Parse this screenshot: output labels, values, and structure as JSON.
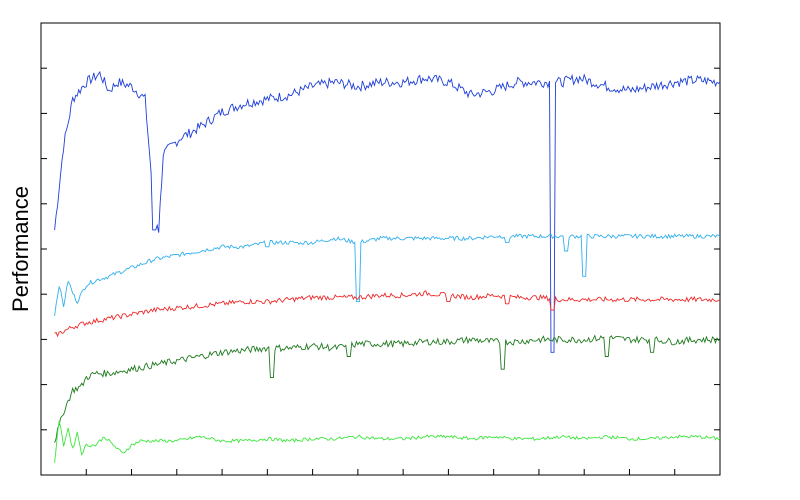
{
  "chart_data": {
    "type": "line",
    "title": "",
    "xlabel": "",
    "ylabel": "Performance",
    "xlim": [
      0,
      150
    ],
    "ylim": [
      0,
      1
    ],
    "grid": false,
    "x_tick_count": 15,
    "y_tick_count": 9,
    "colors": {
      "axis": "#000000",
      "blue": "#1f3fd9",
      "lightblue": "#33b0ee",
      "red": "#ee2a2a",
      "darkgreen": "#1f7a1f",
      "lightgreen": "#3ee63e"
    },
    "series": [
      {
        "color": "#1f3fd9",
        "noise": 0.012,
        "x": [
          3,
          5,
          7,
          10,
          13,
          15,
          17,
          20,
          23,
          25,
          26,
          27,
          29,
          31,
          33,
          36,
          40,
          45,
          50,
          55,
          60,
          65,
          70,
          75,
          80,
          85,
          90,
          95,
          100,
          105,
          110,
          115,
          119,
          122,
          125,
          130,
          135,
          140,
          145,
          150
        ],
        "y": [
          0.55,
          0.75,
          0.86,
          0.9,
          0.92,
          0.88,
          0.9,
          0.89,
          0.86,
          0.6,
          0.55,
          0.73,
          0.75,
          0.77,
          0.78,
          0.8,
          0.83,
          0.85,
          0.86,
          0.87,
          0.89,
          0.9,
          0.89,
          0.9,
          0.9,
          0.91,
          0.9,
          0.87,
          0.88,
          0.9,
          0.9,
          0.9,
          0.91,
          0.9,
          0.89,
          0.88,
          0.89,
          0.9,
          0.905,
          0.9
        ],
        "dips": [
          {
            "x": 25,
            "y": 0.55
          },
          {
            "x": 113,
            "y": 0.26
          }
        ]
      },
      {
        "color": "#33b0ee",
        "noise": 0.005,
        "x": [
          3,
          4,
          5,
          6,
          7,
          8,
          10,
          12,
          15,
          20,
          25,
          30,
          35,
          40,
          45,
          50,
          55,
          60,
          65,
          70,
          75,
          80,
          85,
          90,
          95,
          100,
          105,
          110,
          115,
          120,
          125,
          130,
          135,
          140,
          145,
          150
        ],
        "y": [
          0.35,
          0.42,
          0.37,
          0.43,
          0.4,
          0.38,
          0.42,
          0.43,
          0.44,
          0.46,
          0.48,
          0.49,
          0.5,
          0.51,
          0.51,
          0.52,
          0.52,
          0.52,
          0.53,
          0.52,
          0.53,
          0.53,
          0.53,
          0.53,
          0.53,
          0.535,
          0.535,
          0.535,
          0.535,
          0.535,
          0.535,
          0.535,
          0.535,
          0.535,
          0.535,
          0.535
        ],
        "dips": [
          {
            "x": 70,
            "y": 0.38
          },
          {
            "x": 120,
            "y": 0.44
          },
          {
            "x": 116,
            "y": 0.5
          },
          {
            "x": 57,
            "y": 0.52
          },
          {
            "x": 50,
            "y": 0.51
          },
          {
            "x": 103,
            "y": 0.52
          }
        ]
      },
      {
        "color": "#ee2a2a",
        "noise": 0.006,
        "x": [
          3,
          5,
          7,
          10,
          15,
          20,
          25,
          30,
          35,
          40,
          45,
          50,
          55,
          60,
          65,
          70,
          75,
          80,
          85,
          90,
          95,
          100,
          105,
          110,
          115,
          120,
          125,
          130,
          135,
          140,
          145,
          150
        ],
        "y": [
          0.3,
          0.31,
          0.32,
          0.33,
          0.34,
          0.35,
          0.36,
          0.365,
          0.37,
          0.375,
          0.38,
          0.38,
          0.385,
          0.39,
          0.39,
          0.39,
          0.395,
          0.395,
          0.4,
          0.395,
          0.39,
          0.395,
          0.39,
          0.39,
          0.385,
          0.385,
          0.385,
          0.385,
          0.385,
          0.385,
          0.385,
          0.385
        ],
        "dips": [
          {
            "x": 103,
            "y": 0.375
          },
          {
            "x": 90,
            "y": 0.38
          },
          {
            "x": 113,
            "y": 0.36
          }
        ]
      },
      {
        "color": "#1f7a1f",
        "noise": 0.008,
        "x": [
          3,
          5,
          7,
          9,
          10,
          12,
          15,
          20,
          25,
          30,
          35,
          40,
          45,
          50,
          55,
          60,
          65,
          70,
          75,
          80,
          85,
          90,
          95,
          100,
          105,
          110,
          115,
          120,
          125,
          130,
          135,
          140,
          145,
          150
        ],
        "y": [
          0.05,
          0.12,
          0.17,
          0.18,
          0.2,
          0.21,
          0.21,
          0.22,
          0.23,
          0.24,
          0.25,
          0.26,
          0.265,
          0.27,
          0.27,
          0.275,
          0.27,
          0.28,
          0.28,
          0.28,
          0.285,
          0.285,
          0.29,
          0.285,
          0.285,
          0.29,
          0.29,
          0.29,
          0.295,
          0.29,
          0.29,
          0.285,
          0.29,
          0.29
        ],
        "dips": [
          {
            "x": 51,
            "y": 0.2
          },
          {
            "x": 102,
            "y": 0.22
          },
          {
            "x": 125,
            "y": 0.25
          },
          {
            "x": 135,
            "y": 0.26
          },
          {
            "x": 68,
            "y": 0.25
          }
        ]
      },
      {
        "color": "#3ee63e",
        "noise": 0.004,
        "x": [
          3,
          4,
          5,
          6,
          7,
          8,
          9,
          10,
          12,
          14,
          16,
          18,
          20,
          22,
          25,
          30,
          35,
          40,
          45,
          50,
          55,
          60,
          65,
          70,
          75,
          80,
          85,
          90,
          95,
          100,
          105,
          110,
          115,
          120,
          125,
          130,
          135,
          140,
          145,
          150
        ],
        "y": [
          0.0,
          0.1,
          0.04,
          0.08,
          0.03,
          0.07,
          0.02,
          0.04,
          0.04,
          0.06,
          0.04,
          0.02,
          0.04,
          0.05,
          0.05,
          0.05,
          0.06,
          0.05,
          0.05,
          0.055,
          0.05,
          0.055,
          0.055,
          0.06,
          0.055,
          0.055,
          0.06,
          0.06,
          0.055,
          0.06,
          0.055,
          0.055,
          0.06,
          0.055,
          0.06,
          0.055,
          0.055,
          0.06,
          0.06,
          0.055
        ],
        "dips": []
      }
    ]
  }
}
